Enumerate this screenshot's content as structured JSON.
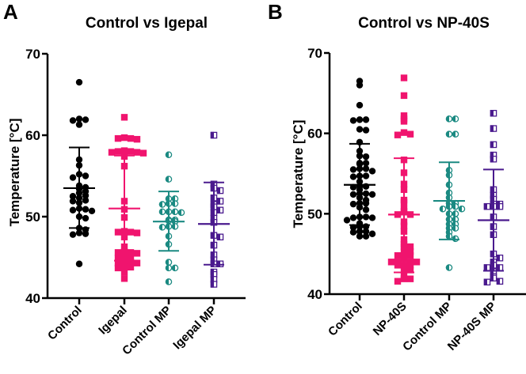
{
  "colors": {
    "Control": "#000000",
    "Igepal": "#f0146e",
    "NP-40S": "#f0146e",
    "Control MP": "#1b8a82",
    "Igepal MP": "#4a1a8e",
    "NP-40S MP": "#4a1a8e"
  },
  "chart_data": [
    {
      "panel_letter": "A",
      "type": "scatter",
      "title": "Control vs Igepal",
      "ylabel": "Temperature [°C]",
      "xlabel": "",
      "ylim": [
        40,
        70
      ],
      "yticks": [
        "40",
        "50",
        "60",
        "70"
      ],
      "categories": [
        "Control",
        "Igepal",
        "Control MP",
        "Igepal MP"
      ],
      "series": [
        {
          "category": "Control",
          "marker": "filled-circle",
          "mean": 53.5,
          "sd_low": 48.6,
          "sd_high": 58.5,
          "values": [
            66.5,
            62,
            61.9,
            61.8,
            61.3,
            57,
            56.3,
            55.2,
            55,
            54.8,
            53.8,
            53.6,
            53.4,
            53.1,
            52.9,
            52.6,
            52.5,
            52.3,
            52,
            51.9,
            51.7,
            51,
            50.9,
            50.8,
            50.7,
            50,
            49.8,
            48.6,
            48.4,
            48,
            47.9,
            47.8,
            44.2
          ]
        },
        {
          "category": "Igepal",
          "marker": "filled-square",
          "mean": 51.0,
          "sd_low": 44.6,
          "sd_high": 57.5,
          "values": [
            62.2,
            59.7,
            59.6,
            59.6,
            59.5,
            58.1,
            58,
            58,
            57.9,
            57.9,
            57.8,
            57.4,
            56.2,
            51.9,
            50.9,
            49.9,
            48.2,
            48.1,
            48.1,
            48,
            47.5,
            46.3,
            45.7,
            45.6,
            45.6,
            45.5,
            45,
            45,
            44.9,
            44.4,
            44.4,
            44.3,
            44.3,
            43.8,
            43.8,
            43.7,
            43.2,
            42.4
          ]
        },
        {
          "category": "Control MP",
          "marker": "half-circle",
          "mean": 49.4,
          "sd_low": 45.8,
          "sd_high": 53.1,
          "values": [
            57.6,
            54.6,
            52.2,
            52.2,
            51.6,
            51.6,
            51.5,
            50.6,
            50.6,
            50.6,
            50.5,
            49.6,
            49.6,
            49.5,
            49.4,
            48.8,
            48.8,
            48.7,
            47.6,
            46.6,
            44.4,
            43.7,
            43.7,
            42.0
          ]
        },
        {
          "category": "Igepal MP",
          "marker": "half-square",
          "mean": 49.1,
          "sd_low": 44.1,
          "sd_high": 54.2,
          "values": [
            60,
            54,
            53.5,
            53.2,
            52.3,
            51.9,
            51.5,
            51.2,
            50.8,
            50.5,
            49.8,
            49.3,
            47.7,
            47.5,
            46.5,
            45.3,
            44.7,
            44.2,
            44.2,
            43.2,
            42.9,
            42.3,
            41.7
          ]
        }
      ]
    },
    {
      "panel_letter": "B",
      "type": "scatter",
      "title": "Control vs NP-40S",
      "ylabel": "Temperature [°C]",
      "xlabel": "",
      "ylim": [
        40,
        70
      ],
      "yticks": [
        "40",
        "50",
        "60",
        "70"
      ],
      "categories": [
        "Control",
        "NP-40S",
        "Control MP",
        "NP-40S MP"
      ],
      "series": [
        {
          "category": "Control",
          "marker": "filled-circle",
          "mean": 53.6,
          "sd_low": 48.6,
          "sd_high": 58.7,
          "values": [
            66.5,
            66,
            63.5,
            61.7,
            61.7,
            61.6,
            60.5,
            60.4,
            58.9,
            57.8,
            57.2,
            57.1,
            56.3,
            56.3,
            56.2,
            55.6,
            55.6,
            55.5,
            55.3,
            54.7,
            54.7,
            54.6,
            54,
            53.4,
            53.4,
            53.3,
            53,
            52.5,
            52.5,
            52.4,
            52.4,
            52,
            51.7,
            51.3,
            51.3,
            51.2,
            50.8,
            50.5,
            49.6,
            49.6,
            49.5,
            49.5,
            49.2,
            48.8,
            48.4,
            48.4,
            48.3,
            47.8,
            47.8,
            47.7,
            47.5,
            47.2,
            47.2
          ]
        },
        {
          "category": "NP-40S",
          "marker": "filled-square",
          "mean": 49.9,
          "sd_low": 42.7,
          "sd_high": 56.9,
          "values": [
            66.9,
            64.7,
            62.2,
            61.8,
            61.5,
            60.1,
            59.9,
            59.8,
            56.7,
            55.1,
            53.7,
            53,
            51.7,
            51.4,
            50.6,
            50.3,
            49.9,
            49.9,
            49,
            48.5,
            47.8,
            46.8,
            46.2,
            45.9,
            45.9,
            45.3,
            45.3,
            44.8,
            44.8,
            44.8,
            44.4,
            44,
            44,
            44,
            44,
            43.6,
            43.6,
            43.6,
            43,
            43,
            42.2,
            41.9,
            41.9,
            41.6
          ]
        },
        {
          "category": "Control MP",
          "marker": "half-circle",
          "mean": 51.6,
          "sd_low": 46.8,
          "sd_high": 56.4,
          "values": [
            61.8,
            61.8,
            59.9,
            59.9,
            55.4,
            54.8,
            53.6,
            52.6,
            52,
            51.3,
            51.3,
            50.9,
            50.9,
            50.6,
            50.6,
            50,
            50,
            49.3,
            49.3,
            48.7,
            48.7,
            48.2,
            48.2,
            47.7,
            47.2,
            46.9,
            43.3
          ]
        },
        {
          "category": "NP-40S MP",
          "marker": "half-square",
          "mean": 49.2,
          "sd_low": 42.9,
          "sd_high": 55.5,
          "values": [
            62.5,
            60.6,
            58.6,
            57.3,
            56.8,
            53,
            52.3,
            51.8,
            51.2,
            51.2,
            50.9,
            50.9,
            50.9,
            49.6,
            48.4,
            47.4,
            45,
            44.5,
            44,
            43.6,
            43.3,
            43.3,
            42.8,
            42.2,
            42,
            41.6,
            41.5
          ]
        }
      ]
    }
  ]
}
